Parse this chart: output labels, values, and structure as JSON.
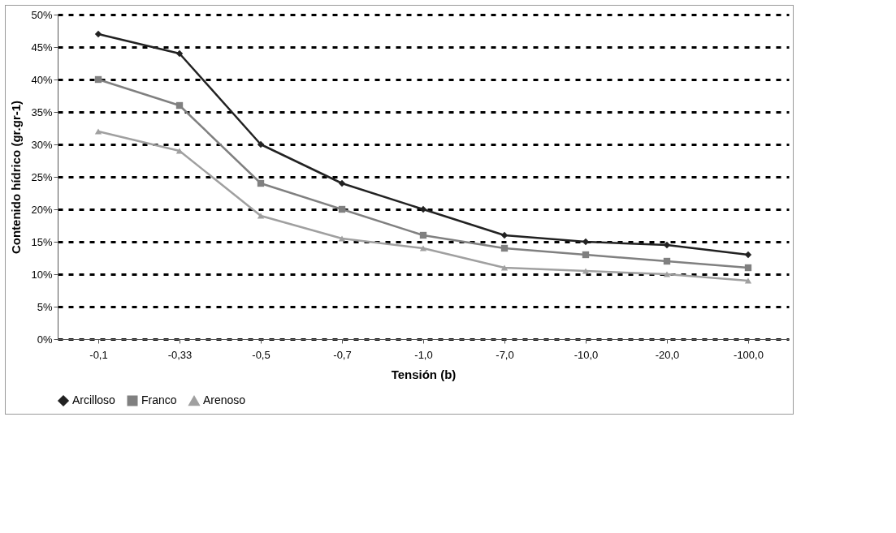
{
  "chart_data": {
    "type": "line",
    "xlabel": "Tensión (b)",
    "ylabel": "Contenido hídrico (gr.gr-1)",
    "categories": [
      "-0,1",
      "-0,33",
      "-0,5",
      "-0,7",
      "-1,0",
      "-7,0",
      "-10,0",
      "-20,0",
      "-100,0"
    ],
    "series": [
      {
        "name": "Arcilloso",
        "color": "#222222",
        "marker": "diamond",
        "values": [
          47,
          44,
          30,
          24,
          20,
          16,
          15,
          14.5,
          13
        ]
      },
      {
        "name": "Franco",
        "color": "#808080",
        "marker": "square",
        "values": [
          40,
          36,
          24,
          20,
          16,
          14,
          13,
          12,
          11
        ]
      },
      {
        "name": "Arenoso",
        "color": "#a0a0a0",
        "marker": "triangle",
        "values": [
          32,
          29,
          19,
          15.5,
          14,
          11,
          10.5,
          10,
          9
        ]
      }
    ],
    "ylim": [
      0,
      50
    ],
    "yticks": [
      {
        "value": 0,
        "label": "0%"
      },
      {
        "value": 5,
        "label": "5%"
      },
      {
        "value": 10,
        "label": "10%"
      },
      {
        "value": 15,
        "label": "15%"
      },
      {
        "value": 20,
        "label": "20%"
      },
      {
        "value": 25,
        "label": "25%"
      },
      {
        "value": 30,
        "label": "30%"
      },
      {
        "value": 35,
        "label": "35%"
      },
      {
        "value": 40,
        "label": "40%"
      },
      {
        "value": 45,
        "label": "45%"
      },
      {
        "value": 50,
        "label": "50%"
      }
    ],
    "grid": "y",
    "legend": "bottom",
    "line_style": "solid"
  }
}
